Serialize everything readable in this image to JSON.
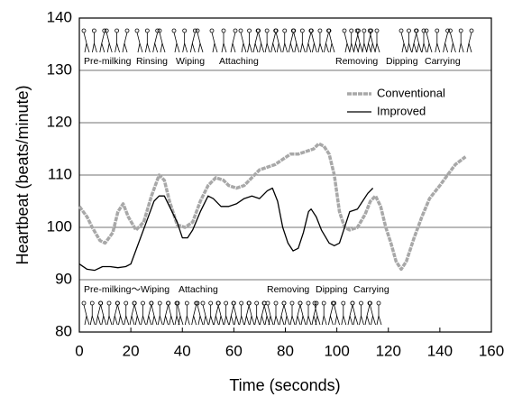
{
  "chart_data": {
    "type": "line",
    "y_label": "Heartbeat (beats/minute)",
    "x_label": "Time (seconds)",
    "xlim": [
      0,
      160
    ],
    "xticks": [
      0,
      20,
      40,
      60,
      80,
      100,
      120,
      140,
      160
    ],
    "ylim": [
      80,
      140
    ],
    "yticks": [
      80,
      90,
      100,
      110,
      120,
      130,
      140
    ],
    "grid": true,
    "legend": "upper right",
    "series": [
      {
        "name": "Conventional",
        "color": "#a8a8a8",
        "x": [
          0,
          3,
          5,
          8,
          10,
          13,
          15,
          17,
          19,
          22,
          25,
          28,
          31,
          33,
          35,
          38,
          41,
          44,
          47,
          50,
          53,
          56,
          58,
          61,
          64,
          67,
          70,
          73,
          76,
          79,
          82,
          85,
          88,
          91,
          93,
          95,
          97,
          99,
          101,
          103,
          105,
          108,
          111,
          113,
          115,
          117,
          119,
          121,
          123,
          125,
          127,
          130,
          133,
          136,
          140,
          143,
          146,
          150
        ],
        "values": [
          104,
          102,
          100,
          97.5,
          97,
          99,
          103,
          104.5,
          102,
          99.5,
          101,
          106,
          110,
          109,
          105,
          100.5,
          100,
          101,
          105,
          108,
          109.5,
          109,
          108,
          107.5,
          108,
          109.5,
          111,
          111.5,
          112,
          113,
          114,
          114,
          114.5,
          115,
          116,
          115.5,
          114,
          110,
          103,
          100,
          99.5,
          100,
          102.5,
          105,
          106,
          104,
          100,
          97,
          93.5,
          92,
          93.5,
          98,
          102,
          105.5,
          108,
          110,
          112,
          113.5
        ]
      },
      {
        "name": "Improved",
        "color": "#000000",
        "x": [
          0,
          3,
          6,
          9,
          12,
          15,
          18,
          20,
          23,
          26,
          29,
          31,
          33,
          35,
          38,
          40,
          42,
          44,
          47,
          50,
          52,
          55,
          58,
          61,
          64,
          67,
          70,
          73,
          75,
          77,
          79,
          81,
          83,
          85,
          87,
          89,
          90,
          92,
          94,
          97,
          99,
          101,
          103,
          105,
          108,
          110,
          112,
          114
        ],
        "values": [
          93,
          92,
          91.8,
          92.5,
          92.5,
          92.3,
          92.5,
          93,
          97,
          101,
          105,
          106,
          106,
          104,
          101,
          98,
          98,
          99.5,
          103,
          106,
          105.5,
          104,
          104,
          104.5,
          105.5,
          106,
          105.5,
          107,
          107.5,
          105,
          100,
          97,
          95.5,
          96,
          99,
          103,
          103.5,
          102,
          99.5,
          97,
          96.5,
          97,
          100,
          103,
          103.5,
          105,
          106.5,
          107.5
        ]
      }
    ],
    "annotations_top": [
      "Pre-milking",
      "Rinsing",
      "Wiping",
      "Attaching",
      "Removing",
      "Dipping",
      "Carrying"
    ],
    "annotations_bottom": [
      "Pre-milking～Wiping",
      "Attaching",
      "Removing",
      "Dipping",
      "Carrying"
    ]
  }
}
